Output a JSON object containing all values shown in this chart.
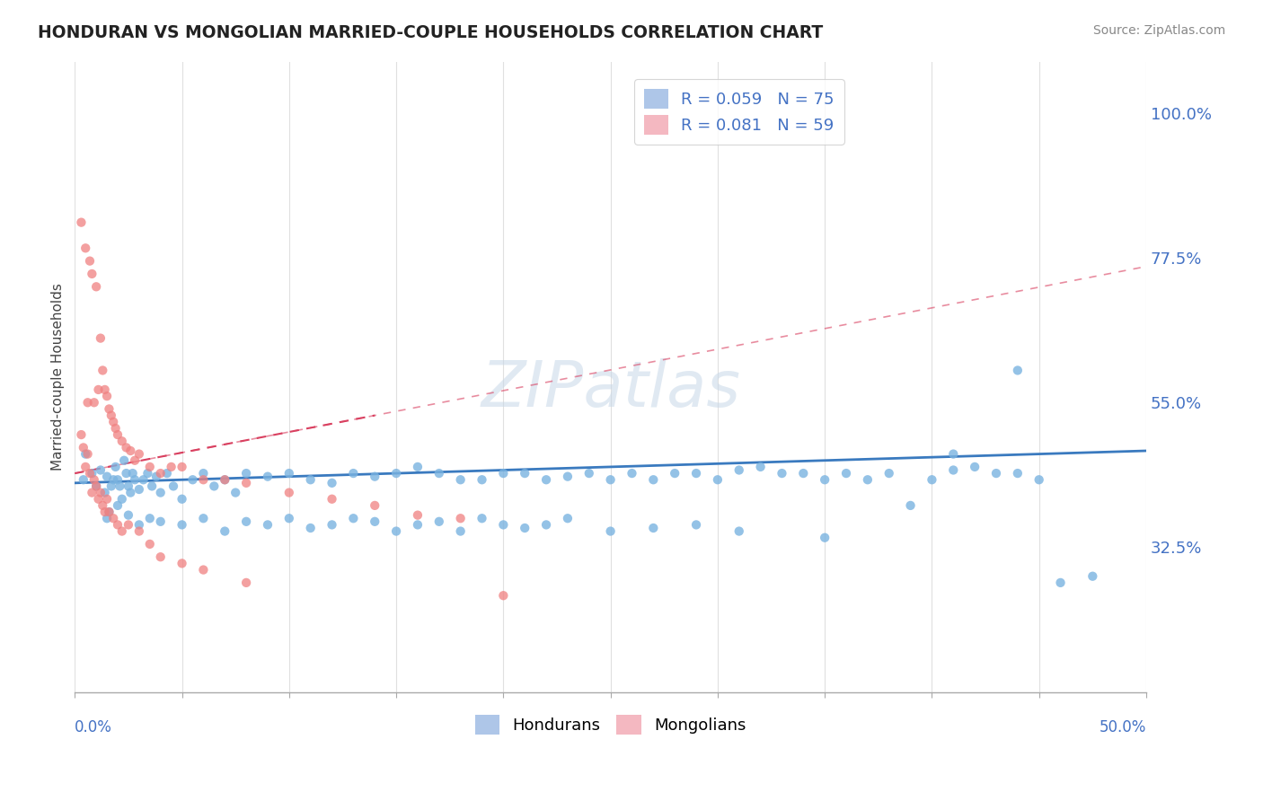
{
  "title": "HONDURAN VS MONGOLIAN MARRIED-COUPLE HOUSEHOLDS CORRELATION CHART",
  "source": "Source: ZipAtlas.com",
  "ylabel": "Married-couple Households",
  "y_ticks_right": [
    32.5,
    55.0,
    77.5,
    100.0
  ],
  "y_ticks_right_labels": [
    "32.5%",
    "55.0%",
    "77.5%",
    "100.0%"
  ],
  "legend_top_labels": [
    "R = 0.059   N = 75",
    "R = 0.081   N = 59"
  ],
  "legend_bottom_labels": [
    "Hondurans",
    "Mongolians"
  ],
  "honduran_color": "#7ab3e0",
  "mongolian_color": "#f08080",
  "honduran_line_color": "#3a7abf",
  "mongolian_line_color": "#d94060",
  "watermark_text": "ZIPatlas",
  "xlim": [
    0,
    50
  ],
  "ylim": [
    10,
    108
  ],
  "background_color": "#ffffff",
  "grid_color": "#e0e0e0",
  "honduran_x": [
    0.4,
    0.5,
    0.8,
    1.0,
    1.2,
    1.4,
    1.5,
    1.6,
    1.7,
    1.8,
    1.9,
    2.0,
    2.1,
    2.2,
    2.3,
    2.4,
    2.5,
    2.6,
    2.7,
    2.8,
    3.0,
    3.2,
    3.4,
    3.6,
    3.8,
    4.0,
    4.3,
    4.6,
    5.0,
    5.5,
    6.0,
    6.5,
    7.0,
    7.5,
    8.0,
    9.0,
    10.0,
    11.0,
    12.0,
    13.0,
    14.0,
    15.0,
    16.0,
    17.0,
    18.0,
    19.0,
    20.0,
    21.0,
    22.0,
    23.0,
    24.0,
    25.0,
    26.0,
    27.0,
    28.0,
    29.0,
    30.0,
    31.0,
    32.0,
    33.0,
    34.0,
    35.0,
    36.0,
    37.0,
    38.0,
    39.0,
    40.0,
    41.0,
    42.0,
    43.0,
    44.0,
    45.0,
    46.0,
    47.5,
    44.0
  ],
  "honduran_y": [
    43.0,
    47.0,
    44.0,
    42.0,
    44.5,
    41.0,
    43.5,
    38.0,
    42.0,
    43.0,
    45.0,
    43.0,
    42.0,
    40.0,
    46.0,
    44.0,
    42.0,
    41.0,
    44.0,
    43.0,
    41.5,
    43.0,
    44.0,
    42.0,
    43.5,
    41.0,
    44.0,
    42.0,
    40.0,
    43.0,
    44.0,
    42.0,
    43.0,
    41.0,
    44.0,
    43.5,
    44.0,
    43.0,
    42.5,
    44.0,
    43.5,
    44.0,
    45.0,
    44.0,
    43.0,
    43.0,
    44.0,
    44.0,
    43.0,
    43.5,
    44.0,
    43.0,
    44.0,
    43.0,
    44.0,
    44.0,
    43.0,
    44.5,
    45.0,
    44.0,
    44.0,
    43.0,
    44.0,
    43.0,
    44.0,
    39.0,
    43.0,
    44.5,
    45.0,
    44.0,
    44.0,
    43.0,
    27.0,
    28.0,
    60.0
  ],
  "honduran_x2": [
    1.5,
    2.0,
    2.5,
    3.0,
    3.5,
    4.0,
    5.0,
    6.0,
    7.0,
    8.0,
    9.0,
    10.0,
    11.0,
    12.0,
    13.0,
    14.0,
    15.0,
    16.0,
    17.0,
    18.0,
    19.0,
    20.0,
    21.0,
    22.0,
    23.0,
    25.0,
    27.0,
    29.0,
    31.0,
    35.0,
    41.0
  ],
  "honduran_y2": [
    37.0,
    39.0,
    37.5,
    36.0,
    37.0,
    36.5,
    36.0,
    37.0,
    35.0,
    36.5,
    36.0,
    37.0,
    35.5,
    36.0,
    37.0,
    36.5,
    35.0,
    36.0,
    36.5,
    35.0,
    37.0,
    36.0,
    35.5,
    36.0,
    37.0,
    35.0,
    35.5,
    36.0,
    35.0,
    34.0,
    47.0
  ],
  "mongolian_x": [
    0.3,
    0.5,
    0.6,
    0.7,
    0.8,
    0.9,
    1.0,
    1.1,
    1.2,
    1.3,
    1.4,
    1.5,
    1.6,
    1.7,
    1.8,
    1.9,
    2.0,
    2.2,
    2.4,
    2.6,
    2.8,
    3.0,
    3.5,
    4.0,
    4.5,
    5.0,
    6.0,
    7.0,
    8.0,
    10.0,
    12.0,
    14.0,
    16.0,
    18.0,
    20.0
  ],
  "mongolian_y": [
    83.0,
    79.0,
    55.0,
    77.0,
    75.0,
    55.0,
    73.0,
    57.0,
    65.0,
    60.0,
    57.0,
    56.0,
    54.0,
    53.0,
    52.0,
    51.0,
    50.0,
    49.0,
    48.0,
    47.5,
    46.0,
    47.0,
    45.0,
    44.0,
    45.0,
    45.0,
    43.0,
    43.0,
    42.5,
    41.0,
    40.0,
    39.0,
    37.5,
    37.0,
    25.0
  ],
  "mongolian_x2": [
    0.3,
    0.4,
    0.5,
    0.6,
    0.7,
    0.8,
    0.9,
    1.0,
    1.1,
    1.2,
    1.3,
    1.4,
    1.5,
    1.6,
    1.8,
    2.0,
    2.2,
    2.5,
    3.0,
    3.5,
    4.0,
    5.0,
    6.0,
    8.0
  ],
  "mongolian_y2": [
    50.0,
    48.0,
    45.0,
    47.0,
    44.0,
    41.0,
    43.0,
    42.0,
    40.0,
    41.0,
    39.0,
    38.0,
    40.0,
    38.0,
    37.0,
    36.0,
    35.0,
    36.0,
    35.0,
    33.0,
    31.0,
    30.0,
    29.0,
    27.0
  ],
  "h_trend_x": [
    0,
    50
  ],
  "h_trend_y": [
    42.5,
    47.5
  ],
  "m_trend_x": [
    0,
    14
  ],
  "m_trend_y": [
    44.0,
    53.0
  ]
}
